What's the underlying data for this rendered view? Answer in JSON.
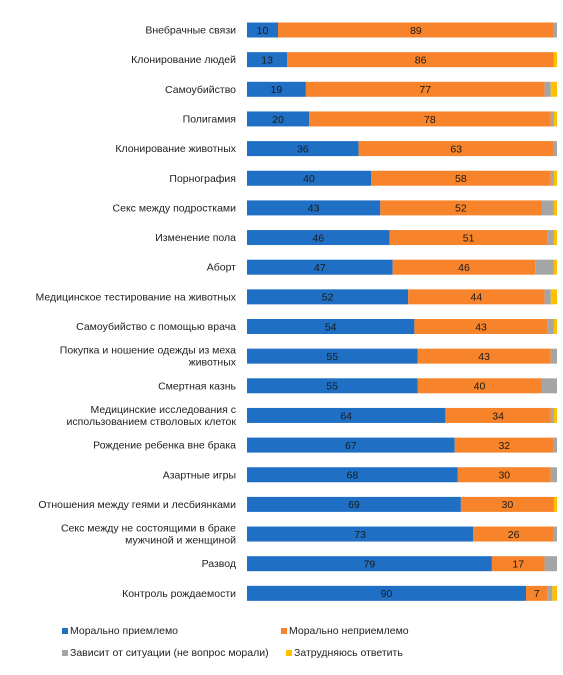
{
  "chart_data": {
    "type": "bar",
    "orientation": "horizontal",
    "stacked": true,
    "xlim": [
      0,
      100
    ],
    "grid": false,
    "legend_position": "bottom",
    "categories": [
      "Внебрачные связи",
      "Клонирование людей",
      "Самоубийство",
      "Полигамия",
      "Клонирование животных",
      "Порнография",
      "Секс между подростками",
      "Изменение пола",
      "Аборт",
      "Медицинское тестирование на животных",
      "Самоубийство с помощью врача",
      "Покупка и ношение одежды из меха\nживотных",
      "Смертная казнь",
      "Медицинские исследования с\nиспользованием стволовых клеток",
      "Рождение ребенка вне брака",
      "Азартные игры",
      "Отношения между геями и лесбиянками",
      "Секс между не состоящими в браке\nмужчиной  и женщиной",
      "Развод",
      "Контроль рождаемости"
    ],
    "series": [
      {
        "name": "Морально приемлемо",
        "color": "#1f6fc5",
        "values": [
          10,
          13,
          19,
          20,
          36,
          40,
          43,
          46,
          47,
          52,
          54,
          55,
          55,
          64,
          67,
          68,
          69,
          73,
          79,
          90
        ],
        "labels": [
          "10",
          "13",
          "19",
          "20",
          "36",
          "40",
          "43",
          "46",
          "47",
          "52",
          "54",
          "55",
          "55",
          "64",
          "67",
          "68",
          "69",
          "73",
          "79",
          "90"
        ]
      },
      {
        "name": "Морально неприемлемо",
        "color": "#f7842a",
        "values": [
          89,
          86,
          77,
          78,
          63,
          58,
          52,
          51,
          46,
          44,
          43,
          43,
          40,
          34,
          32,
          30,
          30,
          26,
          17,
          7
        ],
        "labels": [
          "89",
          "86",
          "77",
          "78",
          "63",
          "58",
          "52",
          "51",
          "46",
          "44",
          "43",
          "43",
          "40",
          "34",
          "32",
          "30",
          "30",
          "26",
          "17",
          "7"
        ]
      },
      {
        "name": "Зависит от ситуации (не вопрос морали)",
        "color": "#a5a5a5",
        "values": [
          1,
          0,
          2,
          1,
          1,
          1,
          4,
          2,
          6,
          2,
          2,
          2,
          5,
          1,
          1,
          2,
          0,
          1,
          4,
          1.5
        ]
      },
      {
        "name": "Затрудняюсь ответить",
        "color": "#ffc000",
        "values": [
          0,
          1,
          2,
          1,
          0,
          1,
          1,
          1,
          1,
          2,
          1,
          0,
          0,
          1,
          0,
          0,
          1,
          0,
          0,
          1.5
        ]
      }
    ]
  }
}
